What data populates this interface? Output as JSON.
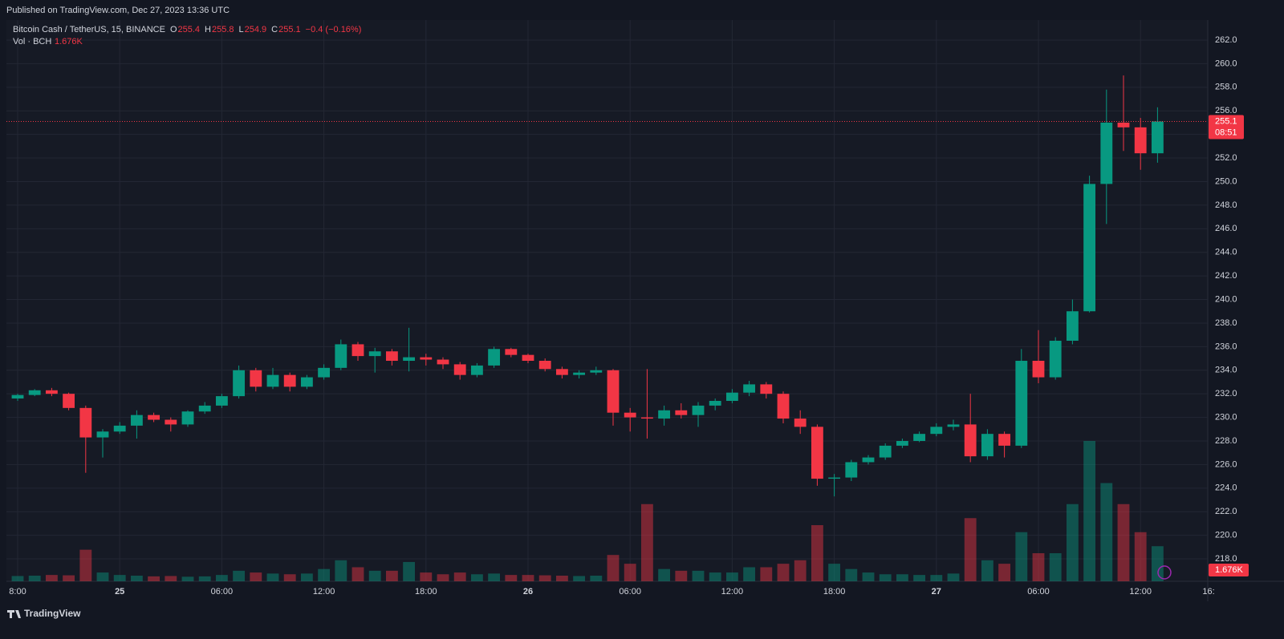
{
  "header": {
    "published": "Published on TradingView.com, Dec 27, 2023 13:36 UTC"
  },
  "footer": {
    "brand": "TradingView"
  },
  "legend": {
    "symbol": "Bitcoin Cash / TetherUS, 15, BINANCE",
    "o_label": "O",
    "open": 255.4,
    "h_label": "H",
    "high": 255.8,
    "l_label": "L",
    "low": 254.9,
    "c_label": "C",
    "close": 255.1,
    "change": "−0.4 (−0.16%)",
    "vol_name": "Vol · BCH",
    "vol_value": "1.676K",
    "countdown": "08:51"
  },
  "chart_data": {
    "type": "candlestick",
    "up_color": "#089981",
    "down_color": "#f23645",
    "x": [
      "18:00",
      "19:00",
      "20:00",
      "21:00",
      "22:00",
      "23:00",
      "00:00",
      "01:00",
      "02:00",
      "03:00",
      "04:00",
      "05:00",
      "06:00",
      "07:00",
      "08:00",
      "09:00",
      "10:00",
      "11:00",
      "12:00",
      "13:00",
      "14:00",
      "15:00",
      "16:00",
      "17:00",
      "18:00",
      "19:00",
      "20:00",
      "21:00",
      "22:00",
      "23:00",
      "00:00",
      "01:00",
      "02:00",
      "03:00",
      "04:00",
      "05:00",
      "06:00",
      "07:00",
      "08:00",
      "09:00",
      "10:00",
      "11:00",
      "12:00",
      "13:00",
      "14:00",
      "15:00",
      "16:00",
      "17:00",
      "18:00",
      "19:00",
      "20:00",
      "21:00",
      "22:00",
      "23:00",
      "00:00",
      "01:00",
      "02:00",
      "03:00",
      "04:00",
      "05:00",
      "06:00",
      "07:00",
      "08:00",
      "09:00",
      "10:00",
      "11:00",
      "12:00",
      "13:00"
    ],
    "open": [
      231.6,
      231.9,
      232.3,
      232.0,
      230.8,
      228.3,
      228.8,
      229.3,
      230.2,
      229.8,
      229.4,
      230.5,
      231.0,
      231.8,
      234.0,
      232.6,
      233.6,
      232.6,
      233.4,
      234.2,
      236.2,
      235.2,
      235.6,
      234.8,
      235.1,
      234.9,
      234.5,
      233.6,
      234.4,
      235.8,
      235.3,
      234.8,
      234.1,
      233.6,
      233.8,
      234.0,
      230.4,
      230.0,
      229.9,
      230.6,
      230.2,
      231.0,
      231.4,
      232.1,
      232.8,
      232.0,
      229.9,
      229.2,
      224.8,
      224.9,
      226.2,
      226.6,
      227.6,
      228.0,
      228.6,
      229.2,
      229.4,
      226.7,
      228.6,
      227.6,
      234.8,
      233.4,
      236.5,
      239.0,
      249.8,
      255.0,
      254.6,
      252.4
    ],
    "high": [
      232.0,
      232.4,
      232.5,
      232.1,
      231.0,
      229.0,
      229.6,
      230.6,
      230.4,
      230.0,
      230.6,
      231.3,
      232.0,
      234.4,
      234.2,
      234.2,
      233.8,
      233.6,
      234.5,
      236.6,
      236.4,
      235.9,
      235.8,
      237.6,
      235.4,
      235.1,
      234.7,
      234.6,
      236.0,
      235.9,
      235.4,
      235.0,
      234.3,
      234.0,
      234.3,
      234.1,
      230.8,
      234.1,
      231.0,
      231.2,
      231.3,
      231.6,
      232.4,
      233.1,
      233.0,
      232.2,
      230.6,
      229.4,
      225.2,
      226.4,
      226.8,
      227.8,
      228.2,
      228.8,
      229.5,
      229.8,
      232.0,
      229.0,
      228.8,
      235.8,
      237.4,
      236.8,
      240.0,
      250.5,
      257.8,
      259.0,
      255.4,
      256.3
    ],
    "low": [
      231.4,
      231.8,
      231.8,
      230.6,
      225.3,
      226.6,
      228.6,
      228.2,
      229.6,
      228.8,
      229.2,
      230.3,
      230.8,
      231.6,
      232.2,
      232.4,
      232.2,
      232.4,
      233.2,
      234.0,
      234.8,
      233.8,
      234.4,
      233.9,
      234.4,
      234.1,
      233.2,
      233.4,
      234.2,
      235.1,
      234.6,
      233.9,
      233.3,
      233.3,
      233.6,
      229.3,
      228.8,
      228.2,
      229.3,
      229.9,
      229.2,
      230.6,
      231.2,
      231.8,
      231.6,
      229.5,
      228.6,
      224.2,
      223.3,
      224.6,
      226.0,
      226.4,
      227.4,
      227.9,
      228.4,
      228.9,
      226.2,
      226.4,
      226.6,
      227.4,
      232.9,
      233.2,
      236.2,
      238.9,
      246.4,
      252.6,
      251.0,
      251.6
    ],
    "close": [
      231.9,
      232.3,
      232.0,
      230.8,
      228.3,
      228.8,
      229.3,
      230.2,
      229.8,
      229.4,
      230.5,
      231.0,
      231.8,
      234.0,
      232.6,
      233.6,
      232.6,
      233.4,
      234.2,
      236.2,
      235.2,
      235.6,
      234.8,
      235.1,
      234.9,
      234.5,
      233.6,
      234.4,
      235.8,
      235.3,
      234.8,
      234.1,
      233.6,
      233.8,
      234.0,
      230.4,
      230.0,
      229.9,
      230.6,
      230.2,
      231.0,
      231.4,
      232.1,
      232.8,
      232.0,
      229.9,
      229.2,
      224.8,
      224.9,
      226.2,
      226.6,
      227.6,
      228.0,
      228.6,
      229.2,
      229.4,
      226.7,
      228.6,
      227.6,
      234.8,
      233.4,
      236.5,
      239.0,
      249.8,
      255.0,
      254.6,
      252.4,
      255.1
    ],
    "volume": [
      1.5,
      1.6,
      1.8,
      1.7,
      9,
      2.5,
      1.8,
      1.6,
      1.4,
      1.5,
      1.3,
      1.4,
      1.8,
      3,
      2.5,
      2.2,
      2,
      2.2,
      3.5,
      6,
      4,
      3,
      3,
      5.5,
      2.5,
      2,
      2.5,
      2,
      2.2,
      1.8,
      1.8,
      1.7,
      1.6,
      1.5,
      1.6,
      7.5,
      5,
      22,
      3.5,
      3,
      3,
      2.5,
      2.5,
      4,
      4,
      5,
      6,
      16,
      5,
      3.5,
      2.5,
      2,
      2,
      1.8,
      1.8,
      2.2,
      18,
      6,
      5,
      14,
      8,
      8,
      22,
      40,
      28,
      22,
      14,
      10
    ],
    "ylim": [
      216.1,
      263.7
    ],
    "vol_ylim": [
      0,
      160
    ],
    "yticks": [
      {
        "value": 218,
        "label": "218.0"
      },
      {
        "value": 220,
        "label": "220.0"
      },
      {
        "value": 222,
        "label": "222.0"
      },
      {
        "value": 224,
        "label": "224.0"
      },
      {
        "value": 226,
        "label": "226.0"
      },
      {
        "value": 228,
        "label": "228.0"
      },
      {
        "value": 230,
        "label": "230.0"
      },
      {
        "value": 232,
        "label": "232.0"
      },
      {
        "value": 234,
        "label": "234.0"
      },
      {
        "value": 236,
        "label": "236.0"
      },
      {
        "value": 238,
        "label": "238.0"
      },
      {
        "value": 240,
        "label": "240.0"
      },
      {
        "value": 242,
        "label": "242.0"
      },
      {
        "value": 244,
        "label": "244.0"
      },
      {
        "value": 246,
        "label": "246.0"
      },
      {
        "value": 248,
        "label": "248.0"
      },
      {
        "value": 250,
        "label": "250.0"
      },
      {
        "value": 252,
        "label": "252.0"
      },
      {
        "value": 254,
        "label": "254.0"
      },
      {
        "value": 256,
        "label": "256.0"
      },
      {
        "value": 258,
        "label": "258.0"
      },
      {
        "value": 260,
        "label": "260.0"
      },
      {
        "value": 262,
        "label": "262.0"
      }
    ],
    "xticks": [
      {
        "value": 0,
        "label": "8:00"
      },
      {
        "value": 6,
        "label": "25"
      },
      {
        "value": 12,
        "label": "06:00"
      },
      {
        "value": 18,
        "label": "12:00"
      },
      {
        "value": 24,
        "label": "18:00"
      },
      {
        "value": 30,
        "label": "26"
      },
      {
        "value": 36,
        "label": "06:00"
      },
      {
        "value": 42,
        "label": "12:00"
      },
      {
        "value": 48,
        "label": "18:00"
      },
      {
        "value": 54,
        "label": "27"
      },
      {
        "value": 60,
        "label": "06:00"
      },
      {
        "value": 66,
        "label": "12:00"
      },
      {
        "value": 70,
        "label": "16:"
      }
    ],
    "grid": true
  }
}
